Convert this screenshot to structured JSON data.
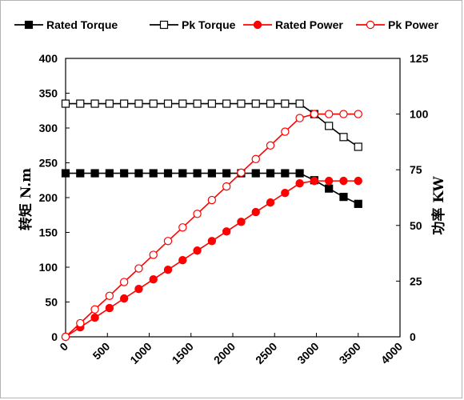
{
  "chart_data": {
    "type": "line",
    "x": [
      0,
      175,
      350,
      525,
      700,
      875,
      1050,
      1225,
      1400,
      1575,
      1750,
      1925,
      2100,
      2275,
      2450,
      2625,
      2800,
      2975,
      3150,
      3325,
      3500
    ],
    "xlim": [
      0,
      4000
    ],
    "xticks": [
      "0",
      "500",
      "1000",
      "1500",
      "2000",
      "2500",
      "3000",
      "3500",
      "4000"
    ],
    "ylabel": "转矩 N.m",
    "y2label": "功率 KW",
    "ylim": [
      0,
      400
    ],
    "y2lim": [
      0,
      125
    ],
    "yticks": [
      "0",
      "50",
      "100",
      "150",
      "200",
      "250",
      "300",
      "350",
      "400"
    ],
    "y2ticks": [
      "0",
      "25",
      "50",
      "75",
      "100",
      "125"
    ],
    "grid": false,
    "legend_position": "top",
    "series": [
      {
        "name": "Rated Torque",
        "axis": "left",
        "color": "#000000",
        "marker": "square-filled",
        "values": [
          235,
          235,
          235,
          235,
          235,
          235,
          235,
          235,
          235,
          235,
          235,
          235,
          235,
          235,
          235,
          235,
          235,
          225,
          213,
          201,
          191
        ]
      },
      {
        "name": "Pk Torque",
        "axis": "left",
        "color": "#000000",
        "marker": "square-open",
        "values": [
          335,
          335,
          335,
          335,
          335,
          335,
          335,
          335,
          335,
          335,
          335,
          335,
          335,
          335,
          335,
          335,
          335,
          320,
          303,
          287,
          273
        ]
      },
      {
        "name": "Rated Power",
        "axis": "right",
        "color": "#ff0000",
        "marker": "circle-filled",
        "values": [
          0,
          4.3,
          8.6,
          12.9,
          17.2,
          21.5,
          25.8,
          30.1,
          34.4,
          38.7,
          43.0,
          47.3,
          51.6,
          56.0,
          60.3,
          64.6,
          68.9,
          70.0,
          70.0,
          70.0,
          70.0
        ]
      },
      {
        "name": "Pk Power",
        "axis": "right",
        "color": "#ff0000",
        "marker": "circle-open",
        "values": [
          0,
          6.1,
          12.3,
          18.4,
          24.6,
          30.7,
          36.8,
          43.0,
          49.1,
          55.2,
          61.4,
          67.5,
          73.7,
          79.8,
          85.9,
          92.1,
          98.2,
          100,
          100,
          100,
          100
        ]
      }
    ]
  }
}
